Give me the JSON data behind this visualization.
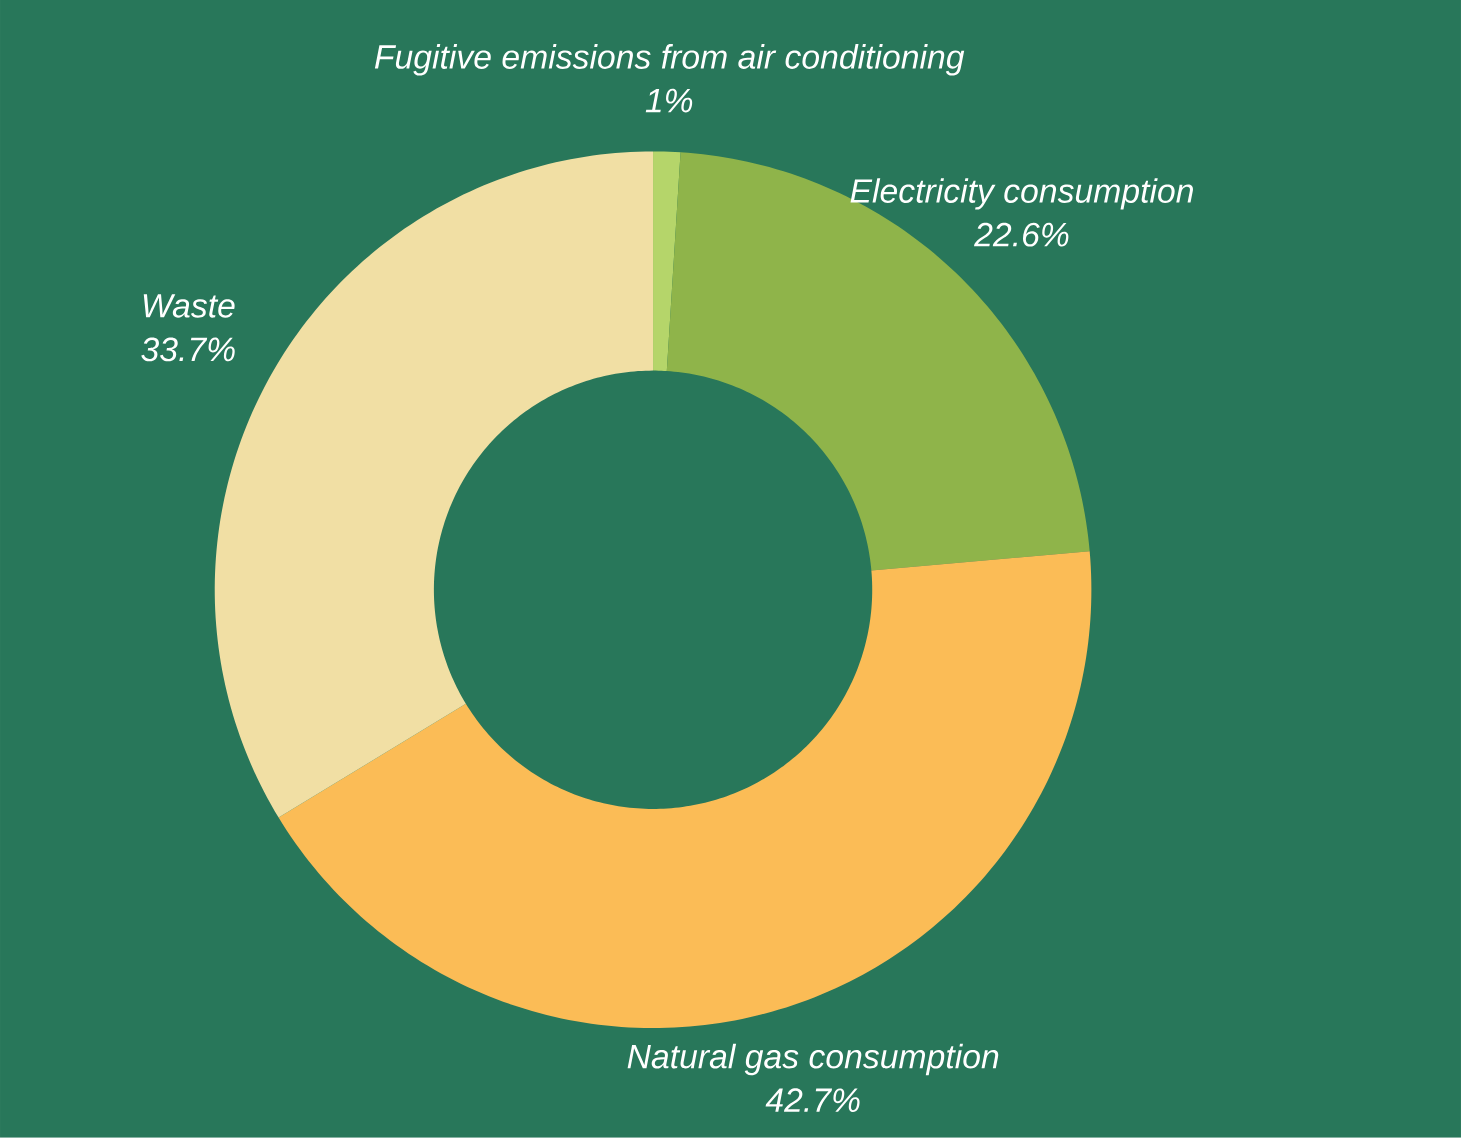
{
  "chart_data": {
    "type": "donut",
    "categories": [
      "Fugitive emissions from air conditioning",
      "Electricity consumption",
      "Natural gas consumption",
      "Waste"
    ],
    "values": [
      1,
      22.6,
      42.7,
      33.7
    ],
    "colors": [
      "#b5d56a",
      "#8fb44a",
      "#fbbc56",
      "#f1dfa4"
    ],
    "value_labels": [
      "1%",
      "22.6%",
      "42.7%",
      "33.7%"
    ]
  }
}
